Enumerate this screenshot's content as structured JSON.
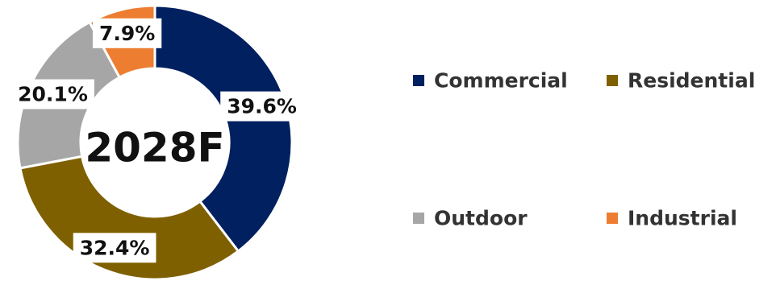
{
  "chart_data": {
    "type": "pie",
    "donut": true,
    "center_label": "2028F",
    "slices": [
      {
        "name": "Commercial",
        "value": 39.6,
        "label": "39.6%",
        "color": "#002060"
      },
      {
        "name": "Residential",
        "value": 32.4,
        "label": "32.4%",
        "color": "#7F6000"
      },
      {
        "name": "Outdoor",
        "value": 20.1,
        "label": "20.1%",
        "color": "#A6A6A6"
      },
      {
        "name": "Industrial",
        "value": 7.9,
        "label": "7.9%",
        "color": "#ED7D31"
      }
    ],
    "legend_position": "right"
  }
}
